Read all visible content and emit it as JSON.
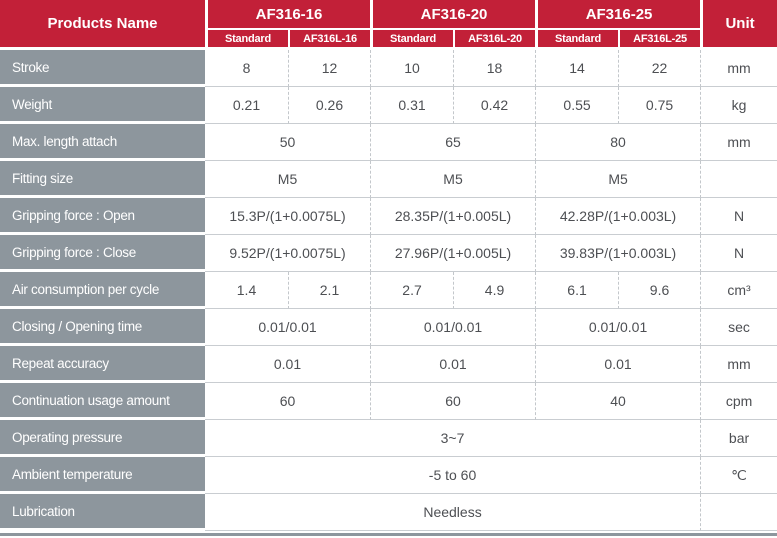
{
  "table": {
    "products_name": "Products Name",
    "unit_label": "Unit",
    "groups": [
      {
        "name": "AF316-16",
        "sub": [
          "Standard",
          "AF316L-16"
        ]
      },
      {
        "name": "AF316-20",
        "sub": [
          "Standard",
          "AF316L-20"
        ]
      },
      {
        "name": "AF316-25",
        "sub": [
          "Standard",
          "AF316L-25"
        ]
      }
    ],
    "rows": [
      {
        "label": "Stroke",
        "cells": [
          {
            "text": "8",
            "span": 1
          },
          {
            "text": "12",
            "span": 1
          },
          {
            "text": "10",
            "span": 1
          },
          {
            "text": "18",
            "span": 1
          },
          {
            "text": "14",
            "span": 1
          },
          {
            "text": "22",
            "span": 1
          }
        ],
        "unit": "mm"
      },
      {
        "label": "Weight",
        "cells": [
          {
            "text": "0.21",
            "span": 1
          },
          {
            "text": "0.26",
            "span": 1
          },
          {
            "text": "0.31",
            "span": 1
          },
          {
            "text": "0.42",
            "span": 1
          },
          {
            "text": "0.55",
            "span": 1
          },
          {
            "text": "0.75",
            "span": 1
          }
        ],
        "unit": "kg"
      },
      {
        "label": "Max. length attach",
        "cells": [
          {
            "text": "50",
            "span": 2
          },
          {
            "text": "65",
            "span": 2
          },
          {
            "text": "80",
            "span": 2
          }
        ],
        "unit": "mm"
      },
      {
        "label": "Fitting size",
        "cells": [
          {
            "text": "M5",
            "span": 2
          },
          {
            "text": "M5",
            "span": 2
          },
          {
            "text": "M5",
            "span": 2
          }
        ],
        "unit": ""
      },
      {
        "label": "Gripping force : Open",
        "cells": [
          {
            "text": "15.3P/(1+0.0075L)",
            "span": 2
          },
          {
            "text": "28.35P/(1+0.005L)",
            "span": 2
          },
          {
            "text": "42.28P/(1+0.003L)",
            "span": 2
          }
        ],
        "unit": "N"
      },
      {
        "label": "Gripping force : Close",
        "cells": [
          {
            "text": "9.52P/(1+0.0075L)",
            "span": 2
          },
          {
            "text": "27.96P/(1+0.005L)",
            "span": 2
          },
          {
            "text": "39.83P/(1+0.003L)",
            "span": 2
          }
        ],
        "unit": "N"
      },
      {
        "label": "Air consumption per cycle",
        "cells": [
          {
            "text": "1.4",
            "span": 1
          },
          {
            "text": "2.1",
            "span": 1
          },
          {
            "text": "2.7",
            "span": 1
          },
          {
            "text": "4.9",
            "span": 1
          },
          {
            "text": "6.1",
            "span": 1
          },
          {
            "text": "9.6",
            "span": 1
          }
        ],
        "unit": "cm³"
      },
      {
        "label": "Closing / Opening time",
        "cells": [
          {
            "text": "0.01/0.01",
            "span": 2
          },
          {
            "text": "0.01/0.01",
            "span": 2
          },
          {
            "text": "0.01/0.01",
            "span": 2
          }
        ],
        "unit": "sec"
      },
      {
        "label": "Repeat accuracy",
        "cells": [
          {
            "text": "0.01",
            "span": 2
          },
          {
            "text": "0.01",
            "span": 2
          },
          {
            "text": "0.01",
            "span": 2
          }
        ],
        "unit": "mm"
      },
      {
        "label": "Continuation usage amount",
        "cells": [
          {
            "text": "60",
            "span": 2
          },
          {
            "text": "60",
            "span": 2
          },
          {
            "text": "40",
            "span": 2
          }
        ],
        "unit": "cpm"
      },
      {
        "label": "Operating pressure",
        "cells": [
          {
            "text": "3~7",
            "span": 6
          }
        ],
        "unit": "bar"
      },
      {
        "label": "Ambient temperature",
        "cells": [
          {
            "text": "-5 to 60",
            "span": 6
          }
        ],
        "unit": "℃"
      },
      {
        "label": "Lubrication",
        "cells": [
          {
            "text": "Needless",
            "span": 6
          }
        ],
        "unit": ""
      }
    ]
  },
  "colors": {
    "header_red": "#c22038",
    "label_gray": "#8d969d",
    "value_text": "#4d4f53",
    "row_line": "#c9cdd1",
    "dashed_line": "#c3c7cb"
  }
}
